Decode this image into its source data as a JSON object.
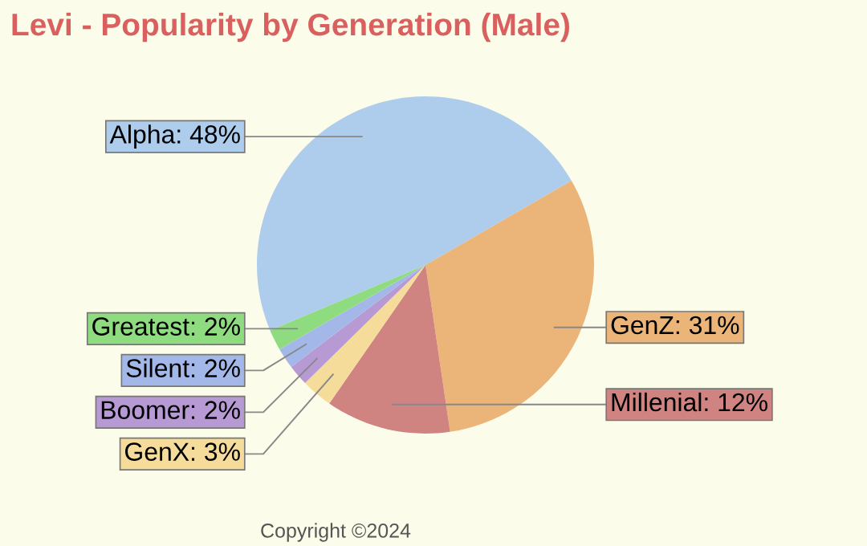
{
  "chart_data": {
    "type": "pie",
    "title": "Levi - Popularity by Generation (Male)",
    "categories": [
      "Alpha",
      "GenZ",
      "Millenial",
      "GenX",
      "Boomer",
      "Silent",
      "Greatest"
    ],
    "values": [
      48,
      31,
      12,
      3,
      2,
      2,
      2
    ],
    "value_labels": [
      "48%",
      "31%",
      "12%",
      "3%",
      "2%",
      "2%",
      "2%"
    ],
    "colors": [
      "#aecdec",
      "#ebb57a",
      "#d08482",
      "#f5dc9a",
      "#b79ad4",
      "#a3b8e8",
      "#8fdc80"
    ],
    "annotations": [
      "Copyright ©2024"
    ]
  }
}
